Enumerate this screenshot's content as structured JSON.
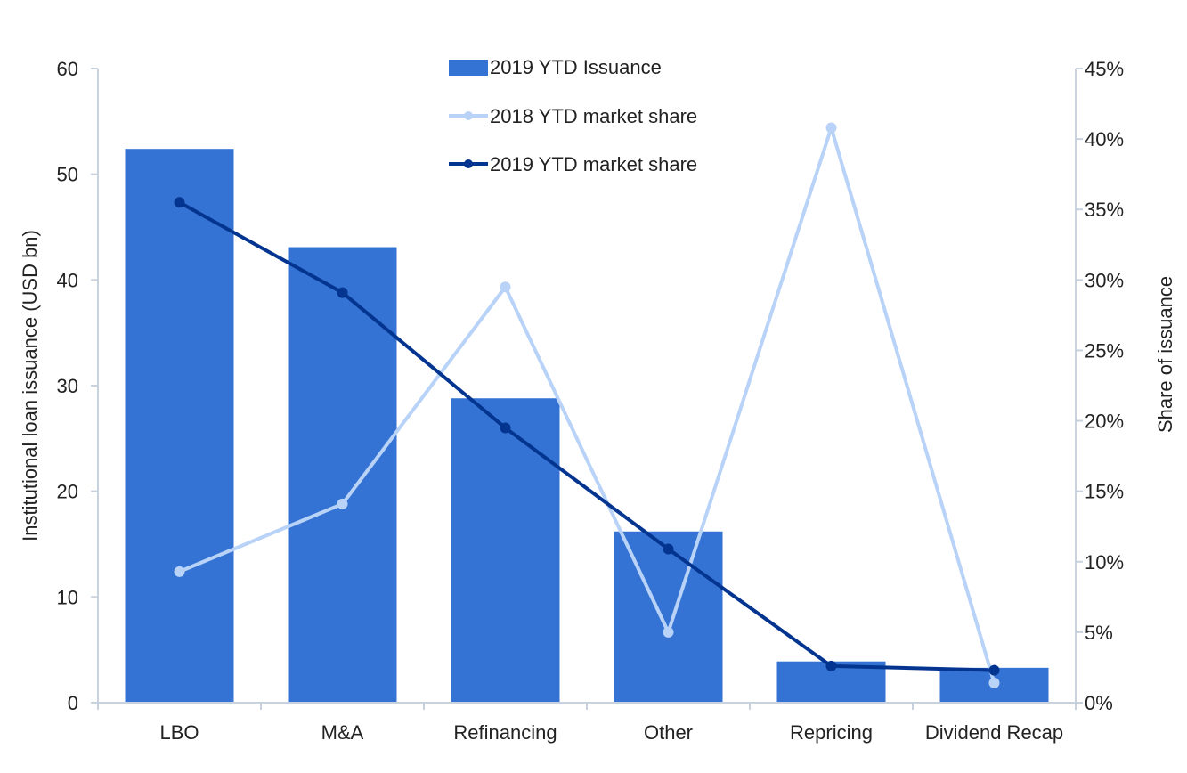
{
  "chart_data": {
    "type": "bar",
    "categories": [
      "LBO",
      "M&A",
      "Refinancing",
      "Other",
      "Repricing",
      "Dividend Recap"
    ],
    "ylabel": "Institutional loan issuance (USD bn)",
    "y2label": "Share of issuance",
    "ylim": [
      0,
      60
    ],
    "y2lim": [
      0,
      45
    ],
    "yticks": [
      "0",
      "10",
      "20",
      "30",
      "40",
      "50",
      "60"
    ],
    "y2ticks": [
      "0%",
      "5%",
      "10%",
      "15%",
      "20%",
      "25%",
      "30%",
      "35%",
      "40%",
      "45%"
    ],
    "grid": false,
    "legend_position": "top-center",
    "series": [
      {
        "name": "2019 YTD Issuance",
        "type": "bar",
        "axis": "left",
        "color": "#3473d3",
        "values": [
          52.4,
          43.1,
          28.8,
          16.2,
          3.9,
          3.3
        ]
      },
      {
        "name": "2018 YTD market share",
        "type": "line",
        "axis": "right",
        "color": "#b8d3f7",
        "values": [
          9.3,
          14.1,
          29.5,
          5.0,
          40.8,
          1.4
        ]
      },
      {
        "name": "2019 YTD market share",
        "type": "line",
        "axis": "right",
        "color": "#033590",
        "values": [
          35.5,
          29.1,
          19.5,
          10.9,
          2.6,
          2.3
        ]
      }
    ]
  }
}
